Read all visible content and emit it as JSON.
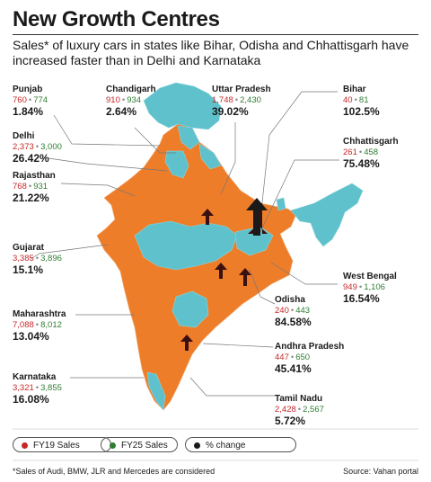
{
  "header": {
    "title": "New Growth Centres",
    "subtitle": "Sales* of luxury cars in states like Bihar, Odisha and Chhattisgarh have increased faster than in Delhi and Karnataka"
  },
  "colors": {
    "highlight_states": "#ee7d2a",
    "other_states": "#5ec1cb",
    "fy19": "#c62828",
    "fy25": "#2e7d32",
    "arrow": "#3b1010"
  },
  "states": [
    {
      "name": "Punjab",
      "fy19": "760",
      "fy25": "774",
      "change": "1.84%"
    },
    {
      "name": "Chandigarh",
      "fy19": "910",
      "fy25": "934",
      "change": "2.64%"
    },
    {
      "name": "Uttar Pradesh",
      "fy19": "1,748",
      "fy25": "2,430",
      "change": "39.02%"
    },
    {
      "name": "Bihar",
      "fy19": "40",
      "fy25": "81",
      "change": "102.5%"
    },
    {
      "name": "Delhi",
      "fy19": "2,373",
      "fy25": "3,000",
      "change": "26.42%"
    },
    {
      "name": "Chhattisgarh",
      "fy19": "261",
      "fy25": "458",
      "change": "75.48%"
    },
    {
      "name": "Rajasthan",
      "fy19": "768",
      "fy25": "931",
      "change": "21.22%"
    },
    {
      "name": "Gujarat",
      "fy19": "3,385",
      "fy25": "3,896",
      "change": "15.1%"
    },
    {
      "name": "West Bengal",
      "fy19": "949",
      "fy25": "1,106",
      "change": "16.54%"
    },
    {
      "name": "Odisha",
      "fy19": "240",
      "fy25": "443",
      "change": "84.58%"
    },
    {
      "name": "Maharashtra",
      "fy19": "7,088",
      "fy25": "8,012",
      "change": "13.04%"
    },
    {
      "name": "Andhra Pradesh",
      "fy19": "447",
      "fy25": "650",
      "change": "45.41%"
    },
    {
      "name": "Karnataka",
      "fy19": "3,321",
      "fy25": "3,855",
      "change": "16.08%"
    },
    {
      "name": "Tamil Nadu",
      "fy19": "2,428",
      "fy25": "2,567",
      "change": "5.72%"
    }
  ],
  "legend": {
    "fy19": "FY19 Sales",
    "fy25": "FY25 Sales",
    "change": "% change"
  },
  "footer": {
    "note": "*Sales of Audi, BMW, JLR and Mercedes are considered",
    "source": "Source: Vahan portal"
  }
}
